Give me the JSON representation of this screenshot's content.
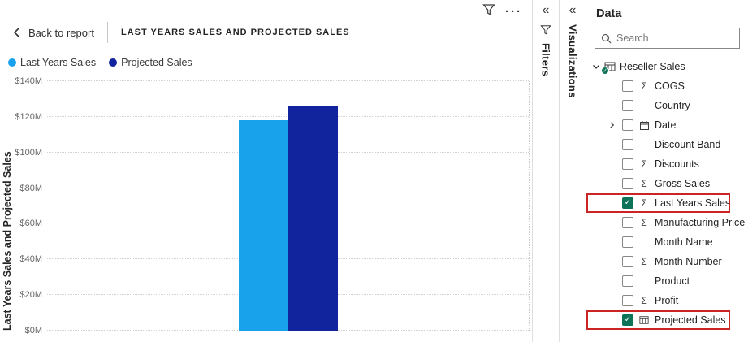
{
  "icons": {
    "more_options": "···",
    "collapse_chevrons": "«"
  },
  "header": {
    "back_label": "Back to report",
    "title": "LAST YEARS SALES AND PROJECTED SALES"
  },
  "chart_data": {
    "type": "bar",
    "title": "LAST YEARS SALES AND PROJECTED SALES",
    "ylabel": "Last Years Sales and Projected Sales",
    "ylim": [
      0,
      140
    ],
    "ytick_labels": [
      "$0M",
      "$20M",
      "$40M",
      "$60M",
      "$80M",
      "$100M",
      "$120M",
      "$140M"
    ],
    "grid": "dotted-horizontal",
    "legend_position": "top-left",
    "unit": "$M",
    "series": [
      {
        "name": "Last Years Sales",
        "value": 118,
        "color": "#18A2EB"
      },
      {
        "name": "Projected Sales",
        "value": 126,
        "color": "#12239E"
      }
    ]
  },
  "side_strips": {
    "filters_label": "Filters",
    "visualizations_label": "Visualizations"
  },
  "data_panel": {
    "title": "Data",
    "search_placeholder": "Search",
    "root": {
      "label": "Reseller Sales",
      "expanded": true
    },
    "fields": [
      {
        "label": "COGS",
        "icon": "sigma",
        "checked": false,
        "expandable": false,
        "highlighted": false
      },
      {
        "label": "Country",
        "icon": "none",
        "checked": false,
        "expandable": false,
        "highlighted": false
      },
      {
        "label": "Date",
        "icon": "calendar",
        "checked": false,
        "expandable": true,
        "highlighted": false
      },
      {
        "label": "Discount Band",
        "icon": "none",
        "checked": false,
        "expandable": false,
        "highlighted": false
      },
      {
        "label": "Discounts",
        "icon": "sigma",
        "checked": false,
        "expandable": false,
        "highlighted": false
      },
      {
        "label": "Gross Sales",
        "icon": "sigma",
        "checked": false,
        "expandable": false,
        "highlighted": false
      },
      {
        "label": "Last Years Sales",
        "icon": "sigma",
        "checked": true,
        "expandable": false,
        "highlighted": true
      },
      {
        "label": "Manufacturing Price",
        "icon": "sigma",
        "checked": false,
        "expandable": false,
        "highlighted": false
      },
      {
        "label": "Month Name",
        "icon": "none",
        "checked": false,
        "expandable": false,
        "highlighted": false
      },
      {
        "label": "Month Number",
        "icon": "sigma",
        "checked": false,
        "expandable": false,
        "highlighted": false
      },
      {
        "label": "Product",
        "icon": "none",
        "checked": false,
        "expandable": false,
        "highlighted": false
      },
      {
        "label": "Profit",
        "icon": "sigma",
        "checked": false,
        "expandable": false,
        "highlighted": false
      },
      {
        "label": "Projected Sales",
        "icon": "table",
        "checked": true,
        "expandable": false,
        "highlighted": true
      }
    ]
  },
  "colors": {
    "highlight_red": "#CB2424",
    "check_green": "#0D7358"
  }
}
